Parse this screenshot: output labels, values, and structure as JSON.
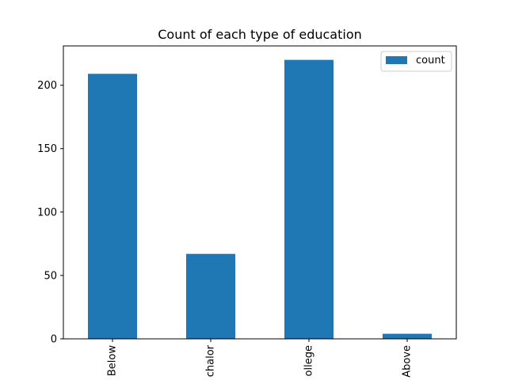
{
  "chart_data": {
    "type": "bar",
    "title": "Count of each type of education",
    "xlabel": "",
    "ylabel": "",
    "categories": [
      "Below",
      "chalor",
      "ollege",
      "Above"
    ],
    "series": [
      {
        "name": "count",
        "values": [
          209,
          67,
          220,
          4
        ]
      }
    ],
    "ylim": [
      0,
      231
    ],
    "yticks": [
      0,
      50,
      100,
      150,
      200
    ],
    "grid": false,
    "legend_position": "top-right",
    "bar_color": "#1f77b4"
  }
}
